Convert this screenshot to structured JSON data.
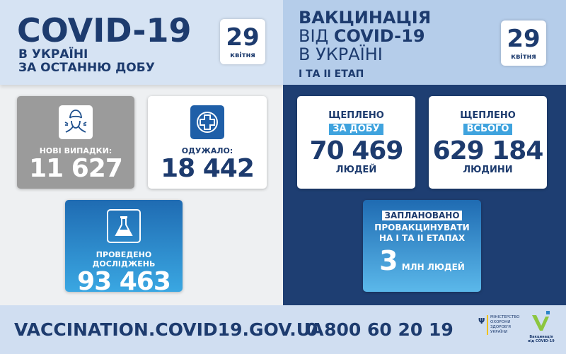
{
  "left": {
    "title": "COVID-19",
    "subtitle1": "В УКРАЇНІ",
    "subtitle2": "ЗА ОСТАННЮ ДОБУ",
    "date_day": "29",
    "date_month": "квітня",
    "cards": [
      {
        "label": "НОВІ ВИПАДКИ:",
        "value": "11 627",
        "icon": "sneezing-person-icon"
      },
      {
        "label": "ОДУЖАЛО:",
        "value": "18 442",
        "icon": "medical-cross-icon"
      },
      {
        "label": "ПРОВЕДЕНО ДОСЛІДЖЕНЬ",
        "value": "93 463",
        "icon": "lab-flask-icon"
      }
    ]
  },
  "right": {
    "title1": "ВАКЦИНАЦІЯ",
    "title2a": "ВІД ",
    "title2b": "COVID-19",
    "title3": "В УКРАЇНІ",
    "stage": "І ТА ІІ ЕТАП",
    "date_day": "29",
    "date_month": "квітня",
    "cards": [
      {
        "top": "ЩЕПЛЕНО",
        "highlight": "ЗА ДОБУ",
        "value": "70 469",
        "unit": "ЛЮДЕЙ"
      },
      {
        "top": "ЩЕПЛЕНО",
        "highlight": "ВСЬОГО",
        "value": "629 184",
        "unit": "ЛЮДИНИ"
      }
    ],
    "plan": {
      "highlight": "ЗАПЛАНОВАНО",
      "line1": "ПРОВАКЦИНУВАТИ",
      "line2": "НА І ТА ІІ ЕТАПАХ",
      "value": "3",
      "unit": "МЛН ЛЮДЕЙ"
    }
  },
  "footer": {
    "url": "VACCINATION.COVID19.GOV.UA",
    "phone": "0 800 60 20 19",
    "ministry": [
      "МІНІСТЕРСТВО",
      "ОХОРОНИ",
      "ЗДОРОВ'Я",
      "УКРАЇНИ"
    ],
    "vacc_logo": "Вакцинація від COVID-19"
  },
  "colors": {
    "navy": "#1e3e72",
    "gray_card": "#9a9a9a",
    "blue_card": "#2a84c8",
    "accent": "#3fa3de",
    "logo_green": "#8cc63f"
  }
}
